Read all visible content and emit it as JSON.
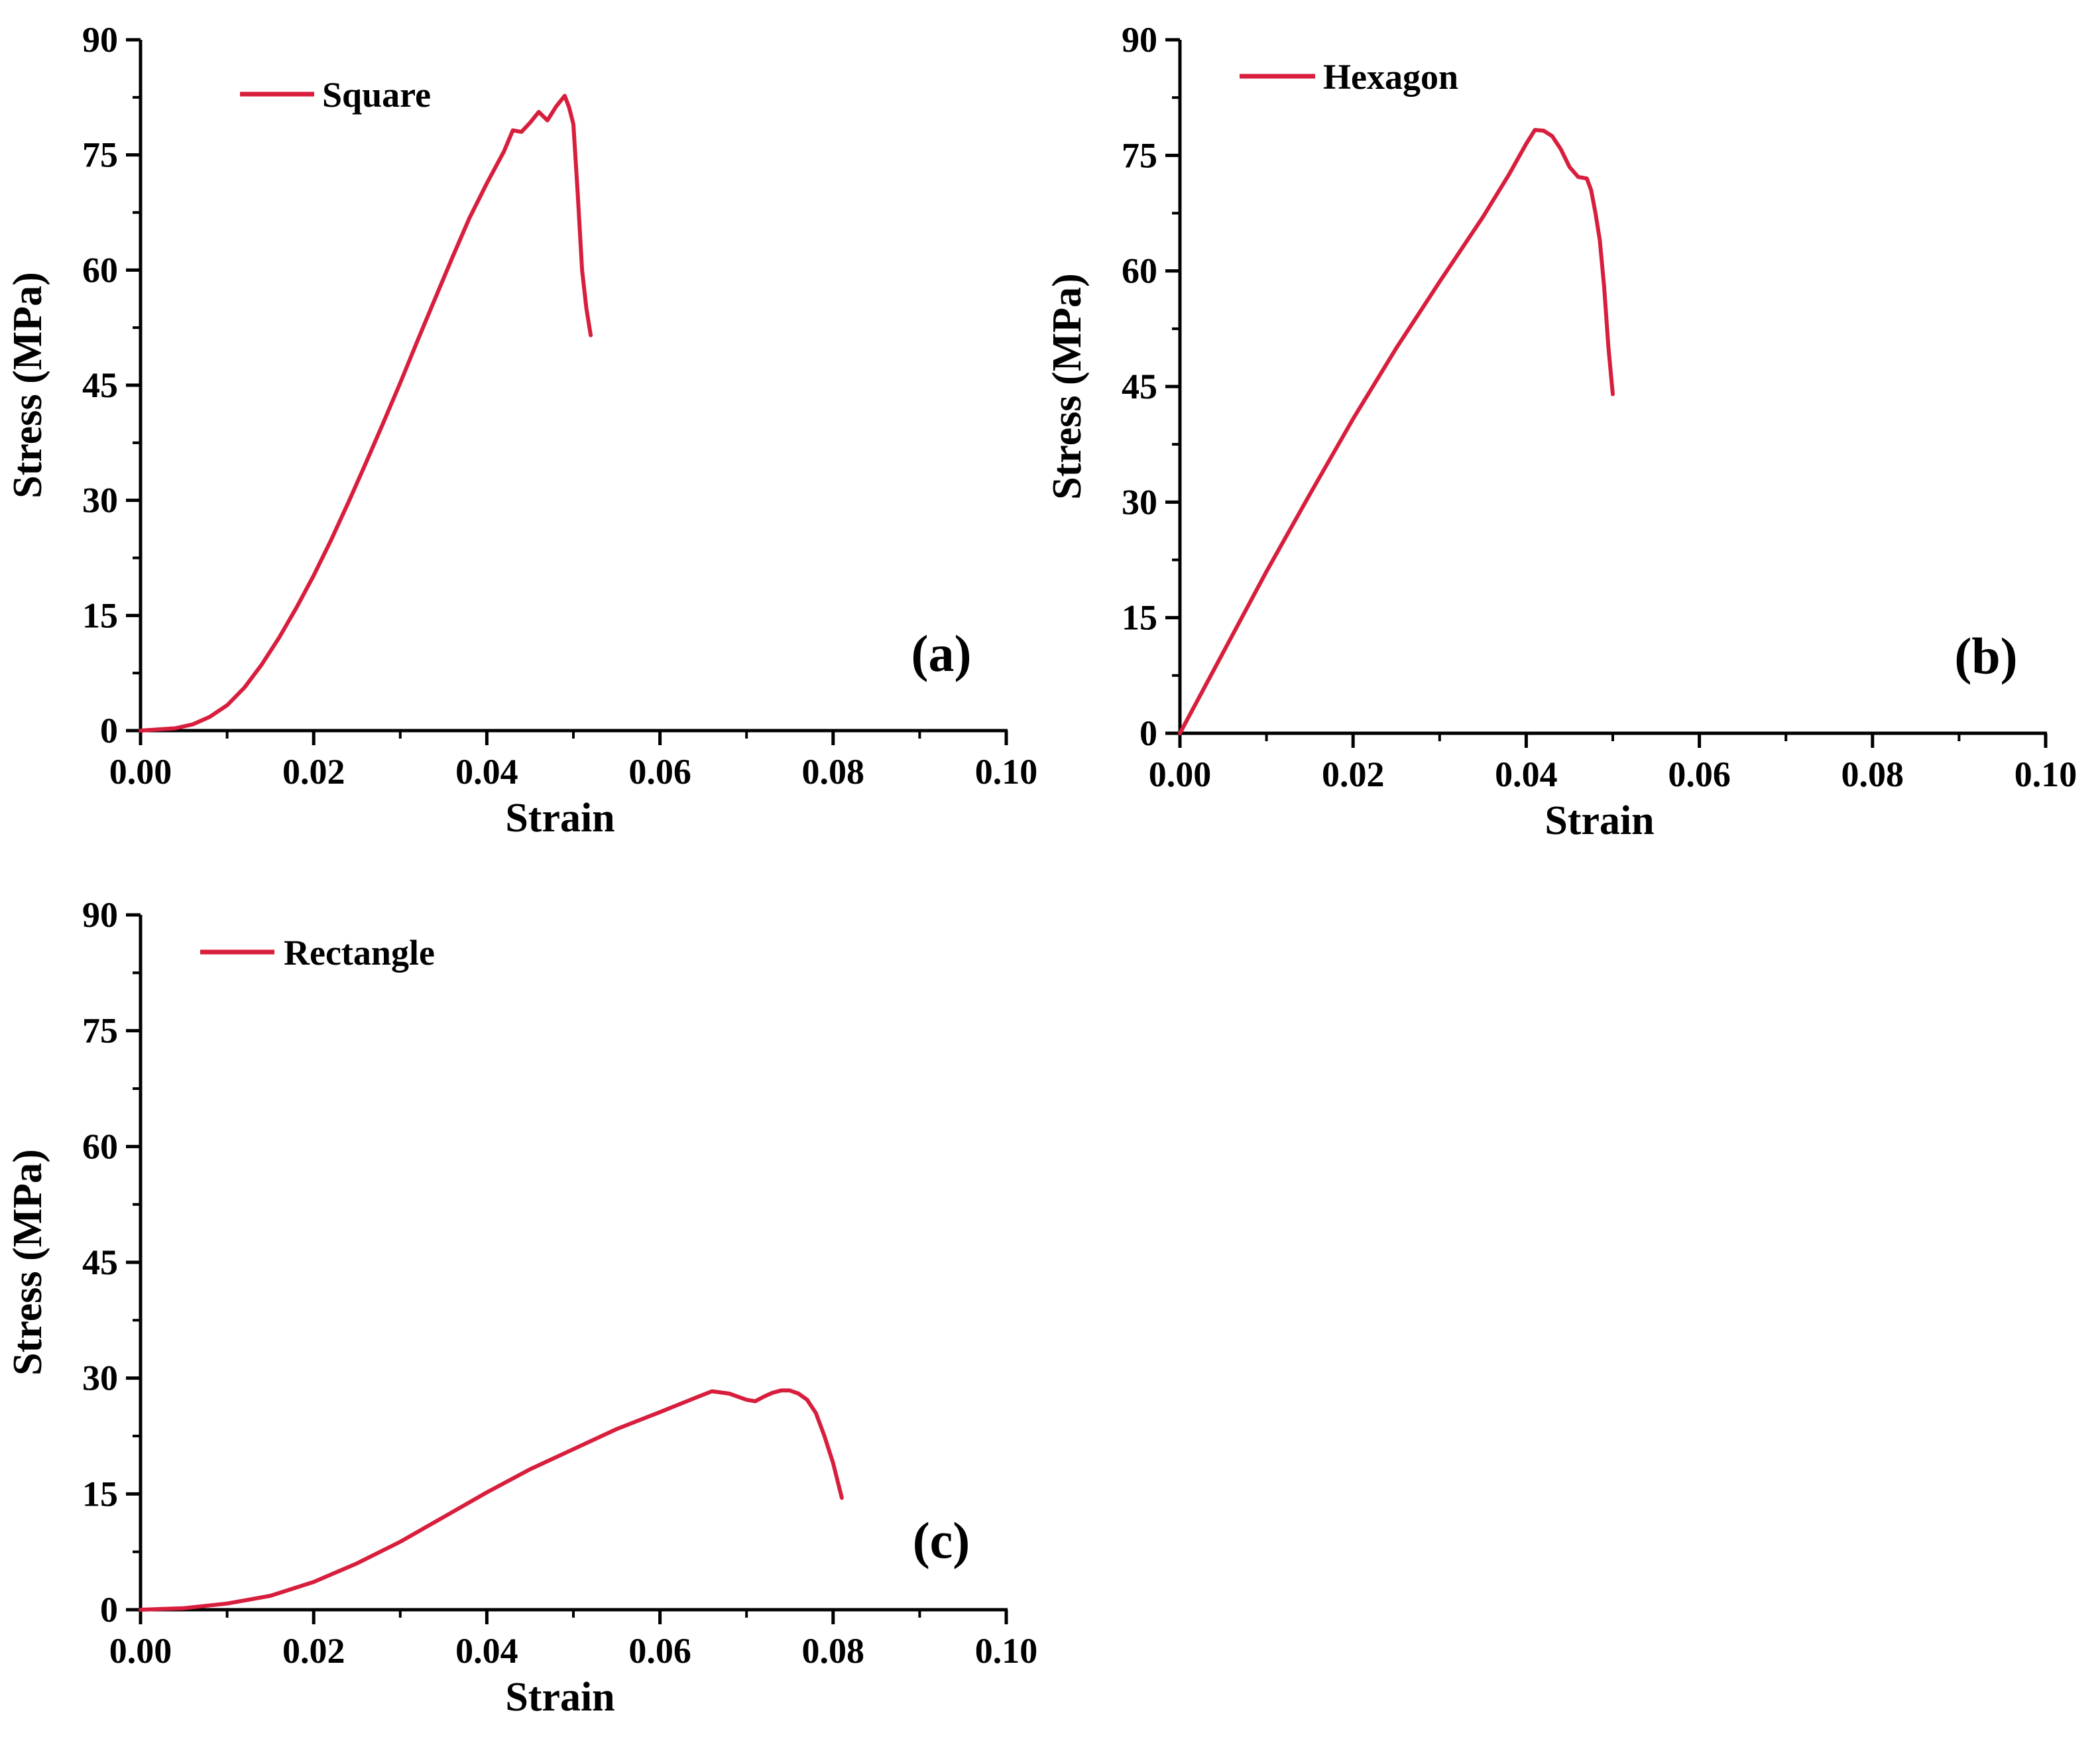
{
  "colors": {
    "series": "#d81e3d",
    "axis": "#000000",
    "background": "#ffffff"
  },
  "chart_data": [
    {
      "type": "line",
      "panel_label": "(a)",
      "xlabel": "Strain",
      "ylabel": "Stress (MPa)",
      "xlim": [
        0,
        0.1
      ],
      "ylim": [
        0,
        90
      ],
      "x_ticks": [
        "0.00",
        "0.02",
        "0.04",
        "0.06",
        "0.08",
        "0.10"
      ],
      "y_ticks": [
        "0",
        "15",
        "30",
        "45",
        "60",
        "75",
        "90"
      ],
      "legend_position": "top-left",
      "series": [
        {
          "name": "Square",
          "x": [
            0.0,
            0.004,
            0.006,
            0.008,
            0.01,
            0.012,
            0.014,
            0.016,
            0.018,
            0.02,
            0.022,
            0.024,
            0.026,
            0.028,
            0.03,
            0.032,
            0.034,
            0.036,
            0.038,
            0.04,
            0.042,
            0.043,
            0.044,
            0.045,
            0.046,
            0.047,
            0.048,
            0.049,
            0.0495,
            0.05,
            0.0505,
            0.051,
            0.0515,
            0.052
          ],
          "y": [
            0.0,
            0.3,
            0.8,
            1.8,
            3.3,
            5.6,
            8.6,
            12.1,
            16.0,
            20.2,
            24.8,
            29.7,
            34.8,
            40.0,
            45.3,
            50.8,
            56.2,
            61.6,
            66.8,
            71.3,
            75.5,
            78.2,
            78.0,
            79.2,
            80.6,
            79.5,
            81.3,
            82.7,
            81.2,
            79.0,
            70.0,
            60.0,
            55.0,
            51.5
          ]
        }
      ]
    },
    {
      "type": "line",
      "panel_label": "(b)",
      "xlabel": "Strain",
      "ylabel": "Stress (MPa)",
      "xlim": [
        0,
        0.1
      ],
      "ylim": [
        0,
        90
      ],
      "x_ticks": [
        "0.00",
        "0.02",
        "0.04",
        "0.06",
        "0.08",
        "0.10"
      ],
      "y_ticks": [
        "0",
        "15",
        "30",
        "45",
        "60",
        "75",
        "90"
      ],
      "legend_position": "top-left",
      "series": [
        {
          "name": "Hexagon",
          "x": [
            0.0,
            0.005,
            0.01,
            0.015,
            0.02,
            0.025,
            0.03,
            0.035,
            0.038,
            0.04,
            0.041,
            0.042,
            0.043,
            0.044,
            0.045,
            0.046,
            0.047,
            0.0475,
            0.048,
            0.0485,
            0.049,
            0.0495,
            0.05
          ],
          "y": [
            0.0,
            10.5,
            21.0,
            31.0,
            40.8,
            50.0,
            58.6,
            67.0,
            72.5,
            76.5,
            78.3,
            78.2,
            77.5,
            75.8,
            73.5,
            72.2,
            72.0,
            70.5,
            67.5,
            64.0,
            58.0,
            50.0,
            44.0
          ]
        }
      ]
    },
    {
      "type": "line",
      "panel_label": "(c)",
      "xlabel": "Strain",
      "ylabel": "Stress (MPa)",
      "xlim": [
        0,
        0.1
      ],
      "ylim": [
        0,
        90
      ],
      "x_ticks": [
        "0.00",
        "0.02",
        "0.04",
        "0.06",
        "0.08",
        "0.10"
      ],
      "y_ticks": [
        "0",
        "15",
        "30",
        "45",
        "60",
        "75",
        "90"
      ],
      "legend_position": "top-left",
      "series": [
        {
          "name": "Rectangle",
          "x": [
            0.0,
            0.005,
            0.01,
            0.015,
            0.02,
            0.025,
            0.03,
            0.035,
            0.04,
            0.045,
            0.05,
            0.055,
            0.06,
            0.064,
            0.066,
            0.068,
            0.07,
            0.071,
            0.072,
            0.073,
            0.074,
            0.075,
            0.076,
            0.077,
            0.078,
            0.079,
            0.08,
            0.081
          ],
          "y": [
            0.0,
            0.2,
            0.8,
            1.8,
            3.6,
            6.0,
            8.8,
            12.0,
            15.2,
            18.2,
            20.8,
            23.4,
            25.6,
            27.4,
            28.3,
            28.0,
            27.2,
            27.0,
            27.6,
            28.1,
            28.4,
            28.4,
            28.0,
            27.2,
            25.5,
            22.5,
            19.0,
            14.5
          ]
        }
      ]
    }
  ]
}
